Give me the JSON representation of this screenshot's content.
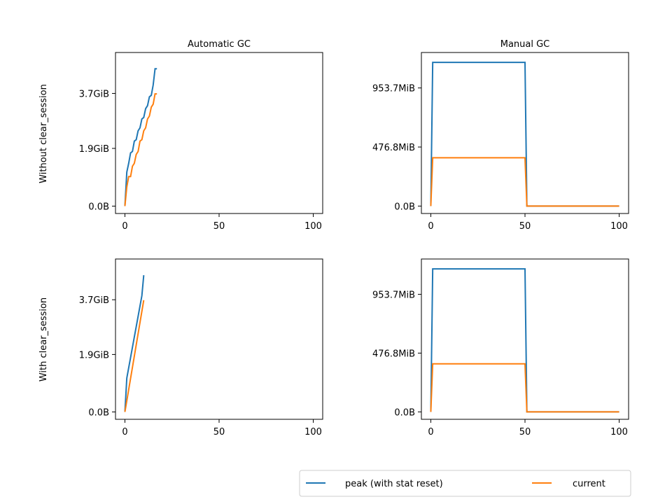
{
  "chart_data": [
    {
      "type": "line",
      "id": "p11",
      "title": "Automatic GC",
      "ylabel": "Without clear_session",
      "xlim": [
        -5,
        105
      ],
      "ylim": [
        -250,
        5200
      ],
      "xticks": [
        0,
        50,
        100
      ],
      "xtick_labels": [
        "0",
        "50",
        "100"
      ],
      "yticks": [
        0,
        1953.67,
        3814.7
      ],
      "ytick_labels": [
        "0.0B",
        "1.9GiB",
        "3.7GiB"
      ],
      "series": [
        {
          "name": "peak (with stat reset)",
          "color": "#1f77b4",
          "x": [
            0,
            1,
            2,
            3,
            4,
            5,
            6,
            7,
            8,
            9,
            10,
            11,
            12,
            13,
            14,
            15,
            16,
            17
          ],
          "y": [
            0,
            1150,
            1450,
            1800,
            1850,
            2200,
            2250,
            2550,
            2650,
            2950,
            3000,
            3300,
            3400,
            3700,
            3750,
            4100,
            4650,
            4650
          ]
        },
        {
          "name": "current",
          "color": "#ff7f0e",
          "x": [
            0,
            1,
            2,
            3,
            4,
            5,
            6,
            7,
            8,
            9,
            10,
            11,
            12,
            13,
            14,
            15,
            16,
            17
          ],
          "y": [
            0,
            650,
            1000,
            1000,
            1350,
            1450,
            1750,
            1850,
            2200,
            2250,
            2550,
            2650,
            2950,
            3050,
            3350,
            3450,
            3800,
            3800
          ]
        }
      ]
    },
    {
      "type": "line",
      "id": "p12",
      "title": "Manual GC",
      "ylabel": "",
      "xlim": [
        -5,
        105
      ],
      "ylim": [
        -60,
        1240
      ],
      "xticks": [
        0,
        50,
        100
      ],
      "xtick_labels": [
        "0",
        "50",
        "100"
      ],
      "yticks": [
        0,
        476.8,
        953.7
      ],
      "ytick_labels": [
        "0.0B",
        "476.8MiB",
        "953.7MiB"
      ],
      "series": [
        {
          "name": "peak (with stat reset)",
          "color": "#1f77b4",
          "x": [
            0,
            1,
            50,
            51,
            100
          ],
          "y": [
            0,
            1160,
            1160,
            0,
            0
          ]
        },
        {
          "name": "current",
          "color": "#ff7f0e",
          "x": [
            0,
            1,
            50,
            51,
            100
          ],
          "y": [
            0,
            390,
            390,
            0,
            0
          ]
        }
      ]
    },
    {
      "type": "line",
      "id": "p21",
      "title": "",
      "ylabel": "With clear_session",
      "xlim": [
        -5,
        105
      ],
      "ylim": [
        -250,
        5200
      ],
      "xticks": [
        0,
        50,
        100
      ],
      "xtick_labels": [
        "0",
        "50",
        "100"
      ],
      "yticks": [
        0,
        1953.67,
        3814.7
      ],
      "ytick_labels": [
        "0.0B",
        "1.9GiB",
        "3.7GiB"
      ],
      "series": [
        {
          "name": "peak (with stat reset)",
          "color": "#1f77b4",
          "x": [
            0,
            1,
            2,
            3,
            4,
            5,
            6,
            7,
            8,
            9,
            10
          ],
          "y": [
            0,
            1150,
            1500,
            1850,
            2200,
            2550,
            2900,
            3250,
            3600,
            3950,
            4650
          ]
        },
        {
          "name": "current",
          "color": "#ff7f0e",
          "x": [
            0,
            1,
            2,
            3,
            4,
            5,
            6,
            7,
            8,
            9,
            10
          ],
          "y": [
            0,
            380,
            760,
            1140,
            1520,
            1900,
            2280,
            2660,
            3040,
            3420,
            3800
          ]
        }
      ]
    },
    {
      "type": "line",
      "id": "p22",
      "title": "",
      "ylabel": "",
      "xlim": [
        -5,
        105
      ],
      "ylim": [
        -60,
        1240
      ],
      "xticks": [
        0,
        50,
        100
      ],
      "xtick_labels": [
        "0",
        "50",
        "100"
      ],
      "yticks": [
        0,
        476.8,
        953.7
      ],
      "ytick_labels": [
        "0.0B",
        "476.8MiB",
        "953.7MiB"
      ],
      "series": [
        {
          "name": "peak (with stat reset)",
          "color": "#1f77b4",
          "x": [
            0,
            1,
            50,
            51,
            100
          ],
          "y": [
            0,
            1160,
            1160,
            0,
            0
          ]
        },
        {
          "name": "current",
          "color": "#ff7f0e",
          "x": [
            0,
            1,
            50,
            51,
            100
          ],
          "y": [
            0,
            390,
            390,
            0,
            0
          ]
        }
      ]
    }
  ],
  "legend": {
    "placement": "bottom-right",
    "entries": [
      {
        "label": "peak (with stat reset)",
        "color": "#1f77b4"
      },
      {
        "label": "current",
        "color": "#ff7f0e"
      }
    ]
  }
}
